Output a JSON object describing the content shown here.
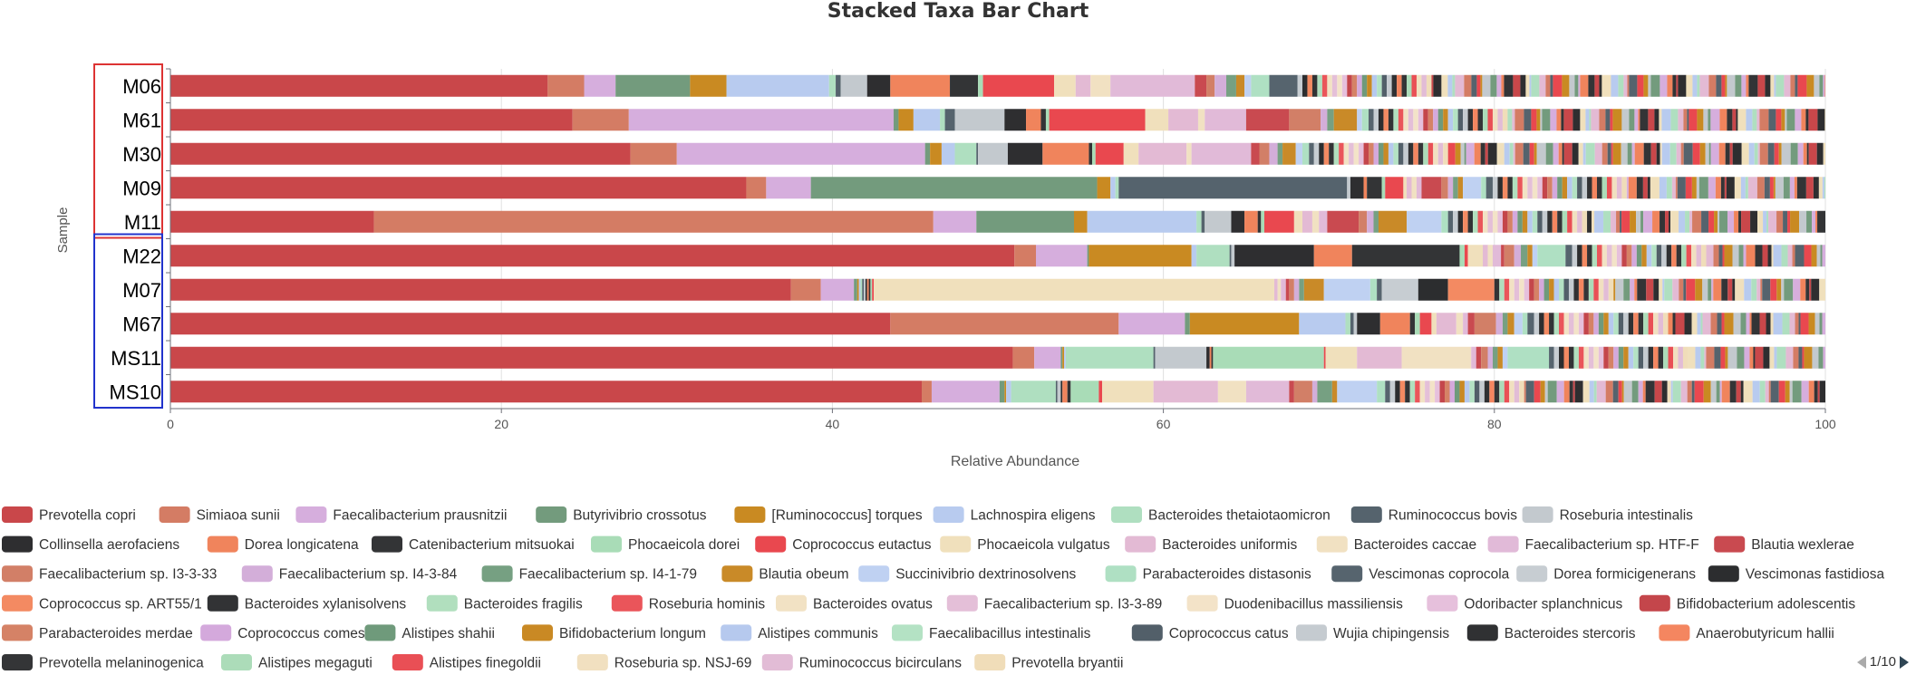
{
  "chart_data": {
    "type": "bar",
    "orientation": "horizontal",
    "stacked": true,
    "title": "Stacked Taxa Bar Chart",
    "xlabel": "Relative Abundance",
    "ylabel": "Sample",
    "xlim": [
      0,
      100
    ],
    "xticks": [
      "0",
      "20",
      "40",
      "60",
      "80",
      "100"
    ],
    "grid": true,
    "legend_position": "bottom",
    "categories": [
      "M06",
      "M61",
      "M30",
      "M09",
      "M11",
      "M22",
      "M07",
      "M67",
      "MS11",
      "MS10"
    ],
    "group_boxes": [
      {
        "color": "#dd3333",
        "members": [
          "M06",
          "M61",
          "M30",
          "M09",
          "M11"
        ]
      },
      {
        "color": "#2233cc",
        "members": [
          "M22",
          "M07",
          "M67",
          "MS11",
          "MS10"
        ]
      }
    ],
    "series": [
      {
        "name": "Prevotella copri",
        "color": "#c9474a",
        "values": [
          22.8,
          24.3,
          27.8,
          34.8,
          12.3,
          51.0,
          37.5,
          43.5,
          50.9,
          45.4
        ]
      },
      {
        "name": "Simiaoa sunii",
        "color": "#d47c64",
        "values": [
          2.2,
          3.4,
          2.8,
          1.2,
          33.8,
          1.3,
          1.8,
          13.8,
          1.3,
          0.6
        ]
      },
      {
        "name": "Faecalibacterium prausnitzii",
        "color": "#d6aedd",
        "values": [
          1.9,
          16.0,
          15.0,
          2.7,
          2.6,
          3.1,
          2.0,
          4.0,
          1.6,
          4.1
        ]
      },
      {
        "name": "Butyrivibrio crossotus",
        "color": "#739b7d",
        "values": [
          4.5,
          0.3,
          0.3,
          17.3,
          5.9,
          0.1,
          0.2,
          0.3,
          0.1,
          0.3
        ]
      },
      {
        "name": "[Ruminococcus] torques",
        "color": "#c98a22",
        "values": [
          2.2,
          0.9,
          0.7,
          0.8,
          0.8,
          6.2,
          0.1,
          6.6,
          0.1,
          0.1
        ]
      },
      {
        "name": "Lachnospira eligens",
        "color": "#b8cbef",
        "values": [
          6.2,
          1.6,
          0.8,
          0.3,
          6.6,
          0.3,
          0.1,
          2.8,
          0.1,
          0.3
        ]
      },
      {
        "name": "Bacteroides thetaiotaomicron",
        "color": "#afdfc0",
        "values": [
          0.4,
          0.3,
          1.3,
          0.2,
          0.3,
          2.0,
          0.1,
          0.3,
          5.3,
          2.7
        ]
      },
      {
        "name": "Ruminococcus bovis",
        "color": "#55636d",
        "values": [
          0.3,
          0.6,
          0.1,
          13.8,
          0.2,
          0.1,
          0.1,
          0.2,
          0.1,
          0.1
        ]
      },
      {
        "name": "Roseburia intestinalis",
        "color": "#c3c9ce",
        "values": [
          1.6,
          3.0,
          1.8,
          0.2,
          1.6,
          0.2,
          0.1,
          0.2,
          3.1,
          0.2
        ]
      },
      {
        "name": "Collinsella aerofaciens",
        "color": "#2e2e30",
        "values": [
          1.4,
          1.3,
          2.1,
          0.8,
          0.8,
          4.8,
          0.1,
          1.4,
          0.2,
          0.1
        ]
      },
      {
        "name": "Dorea longicatena",
        "color": "#f0845c",
        "values": [
          3.6,
          0.9,
          2.8,
          0.2,
          0.8,
          2.3,
          0.1,
          1.8,
          0.1,
          0.3
        ]
      },
      {
        "name": "Catenibacterium mitsuokai",
        "color": "#333436",
        "values": [
          1.7,
          0.3,
          0.2,
          0.9,
          0.2,
          6.5,
          0.1,
          0.3,
          0.1,
          0.2
        ]
      },
      {
        "name": "Phocaeicola dorei",
        "color": "#a9dcb7",
        "values": [
          0.3,
          0.2,
          0.2,
          0.2,
          0.2,
          0.3,
          0.1,
          0.3,
          6.7,
          1.7
        ]
      },
      {
        "name": "Coprococcus eutactus",
        "color": "#e9484f",
        "values": [
          4.3,
          5.8,
          1.7,
          1.1,
          1.8,
          0.2,
          0.1,
          0.7,
          0.1,
          0.2
        ]
      },
      {
        "name": "Phocaeicola vulgatus",
        "color": "#f0e0bc",
        "values": [
          1.3,
          1.4,
          0.9,
          0.2,
          0.5,
          0.9,
          24.2,
          0.3,
          1.9,
          3.1
        ]
      },
      {
        "name": "Bacteroides uniformis",
        "color": "#e3bad4",
        "values": [
          0.9,
          1.8,
          2.9,
          0.3,
          0.6,
          0.3,
          0.2,
          1.2,
          2.7,
          3.9
        ]
      },
      {
        "name": "Bacteroides caccae",
        "color": "#f1e1c2",
        "values": [
          1.2,
          0.4,
          0.3,
          0.3,
          0.4,
          0.3,
          0.2,
          0.4,
          4.2,
          1.7
        ]
      },
      {
        "name": "Faecalibacterium sp. HTF-F",
        "color": "#e1bad8",
        "values": [
          5.1,
          2.5,
          3.6,
          0.3,
          0.5,
          0.5,
          0.3,
          0.3,
          0.3,
          2.6
        ]
      },
      {
        "name": "Blautia wexlerae",
        "color": "#c94a50",
        "values": [
          0.7,
          2.6,
          0.5,
          1.2,
          1.9,
          0.2,
          0.2,
          0.4,
          0.3,
          0.3
        ]
      },
      {
        "name": "Faecalibacterium sp. I3-3-33",
        "color": "#d27f67",
        "values": [
          0.5,
          1.9,
          0.6,
          0.4,
          0.5,
          0.6,
          0.3,
          1.3,
          0.4,
          1.1
        ]
      },
      {
        "name": "Faecalibacterium sp. I4-3-84",
        "color": "#d3aed9",
        "values": [
          0.7,
          0.4,
          0.5,
          0.3,
          0.4,
          0.4,
          0.3,
          0.4,
          0.3,
          0.3
        ]
      },
      {
        "name": "Faecalibacterium sp. I4-1-79",
        "color": "#76a082",
        "values": [
          0.6,
          0.4,
          0.3,
          0.3,
          0.3,
          0.4,
          0.3,
          0.3,
          0.3,
          0.9
        ]
      },
      {
        "name": "Blautia obeum",
        "color": "#c98a28",
        "values": [
          0.5,
          1.4,
          0.8,
          0.3,
          1.7,
          0.3,
          1.2,
          0.4,
          0.3,
          0.3
        ]
      },
      {
        "name": "Succinivibrio dextrinosolvens",
        "color": "#bfd1f2",
        "values": [
          0.4,
          0.3,
          0.4,
          1.1,
          2.1,
          0.3,
          2.8,
          0.5,
          0.3,
          2.4
        ]
      },
      {
        "name": "Parabacteroides distasonis",
        "color": "#afe0c3",
        "values": [
          1.1,
          0.4,
          0.4,
          0.3,
          0.4,
          1.7,
          0.4,
          0.3,
          2.5,
          0.5
        ]
      },
      {
        "name": "Vescimonas coprocola",
        "color": "#56646e",
        "values": [
          1.7,
          0.3,
          0.3,
          0.4,
          0.3,
          0.4,
          0.3,
          0.4,
          0.3,
          0.3
        ]
      },
      {
        "name": "Dorea formicigenerans",
        "color": "#c7cdd2",
        "values": [
          0.3,
          0.3,
          0.3,
          0.3,
          0.3,
          0.3,
          2.2,
          0.3,
          0.3,
          0.3
        ]
      },
      {
        "name": "Vescimonas fastidiosa",
        "color": "#2c2d2f",
        "values": [
          0.3,
          0.3,
          0.3,
          0.3,
          0.3,
          0.3,
          1.8,
          0.3,
          0.3,
          0.3
        ]
      },
      {
        "name": "Coprococcus sp. ART55/1",
        "color": "#f38a62",
        "values": [
          0.3,
          0.3,
          0.3,
          0.3,
          0.3,
          0.3,
          2.8,
          0.3,
          0.3,
          0.3
        ]
      },
      {
        "name": "Bacteroides xylanisolvens",
        "color": "#323335",
        "values": [
          0.3,
          0.3,
          0.3,
          0.3,
          0.3,
          0.3,
          0.3,
          0.3,
          0.3,
          0.3
        ]
      },
      {
        "name": "Bacteroides fragilis",
        "color": "#b1dfbe",
        "values": [
          0.3,
          0.3,
          0.3,
          0.3,
          0.3,
          0.3,
          0.3,
          0.3,
          0.3,
          0.3
        ]
      },
      {
        "name": "Roseburia hominis",
        "color": "#ea555a",
        "values": [
          0.3,
          0.3,
          0.3,
          0.3,
          0.3,
          0.3,
          0.3,
          0.3,
          0.3,
          0.3
        ]
      },
      {
        "name": "Bacteroides ovatus",
        "color": "#f2e2c4",
        "values": [
          0.3,
          0.3,
          0.3,
          0.3,
          0.3,
          0.3,
          0.3,
          0.3,
          0.3,
          0.3
        ]
      },
      {
        "name": "Faecalibacterium sp. I3-3-89",
        "color": "#e4bfd8",
        "values": [
          0.3,
          0.3,
          0.3,
          0.3,
          0.3,
          0.3,
          0.3,
          0.3,
          0.3,
          0.3
        ]
      },
      {
        "name": "Duodenibacillus massiliensis",
        "color": "#f3e3c8",
        "values": [
          0.3,
          0.3,
          0.3,
          0.3,
          0.3,
          0.3,
          0.3,
          0.3,
          0.3,
          0.3
        ]
      },
      {
        "name": "Odoribacter splanchnicus",
        "color": "#e6c0dc",
        "values": [
          0.3,
          0.3,
          0.3,
          0.3,
          0.3,
          0.3,
          0.3,
          0.3,
          0.3,
          0.3
        ]
      },
      {
        "name": "Bifidobacterium adolescentis",
        "color": "#c4464b",
        "values": [
          0.3,
          0.3,
          0.3,
          0.3,
          0.3,
          0.3,
          0.3,
          0.3,
          0.3,
          0.3
        ]
      },
      {
        "name": "Parabacteroides merdae",
        "color": "#d58266",
        "values": [
          0.3,
          0.3,
          0.3,
          0.3,
          0.3,
          0.3,
          0.3,
          0.3,
          0.3,
          0.3
        ]
      },
      {
        "name": "Coprococcus comes",
        "color": "#d4a9dc",
        "values": [
          0.3,
          0.3,
          0.3,
          0.3,
          0.3,
          0.3,
          0.3,
          0.3,
          0.3,
          0.3
        ]
      },
      {
        "name": "Alistipes shahii",
        "color": "#6f9a7b",
        "values": [
          0.3,
          0.3,
          0.3,
          0.3,
          0.3,
          0.3,
          0.3,
          0.3,
          0.3,
          0.3
        ]
      },
      {
        "name": "Bifidobacterium longum",
        "color": "#c98924",
        "values": [
          0.3,
          0.3,
          0.3,
          0.3,
          0.3,
          0.3,
          0.3,
          0.3,
          0.3,
          0.3
        ]
      },
      {
        "name": "Alistipes communis",
        "color": "#b6c9ee",
        "values": [
          0.3,
          0.3,
          0.3,
          0.3,
          0.3,
          0.3,
          0.3,
          0.3,
          0.3,
          0.3
        ]
      },
      {
        "name": "Faecalibacillus intestinalis",
        "color": "#b4e2c4",
        "values": [
          0.3,
          0.3,
          0.3,
          0.3,
          0.3,
          0.3,
          0.3,
          0.3,
          0.3,
          0.3
        ]
      },
      {
        "name": "Coprococcus catus",
        "color": "#525f69",
        "values": [
          0.3,
          0.3,
          0.3,
          0.3,
          0.3,
          0.3,
          0.3,
          0.3,
          0.3,
          0.3
        ]
      },
      {
        "name": "Wujia chipingensis",
        "color": "#c5cbd0",
        "values": [
          0.3,
          0.3,
          0.3,
          0.3,
          0.3,
          0.3,
          0.3,
          0.3,
          0.3,
          0.3
        ]
      },
      {
        "name": "Bacteroides stercoris",
        "color": "#303133",
        "values": [
          0.3,
          0.3,
          0.3,
          0.3,
          0.3,
          0.3,
          0.3,
          0.3,
          0.3,
          0.3
        ]
      },
      {
        "name": "Anaerobutyricum hallii",
        "color": "#f48660",
        "values": [
          0.3,
          0.3,
          0.3,
          0.3,
          0.3,
          0.3,
          0.3,
          0.3,
          0.3,
          0.3
        ]
      },
      {
        "name": "Prevotella melaninogenica",
        "color": "#343537",
        "values": [
          0.3,
          0.3,
          0.3,
          0.3,
          0.3,
          0.3,
          0.3,
          0.3,
          0.3,
          0.3
        ]
      },
      {
        "name": "Alistipes megaguti",
        "color": "#acdcb9",
        "values": [
          0.3,
          0.3,
          0.3,
          0.3,
          0.3,
          0.3,
          0.3,
          0.3,
          0.3,
          0.3
        ]
      },
      {
        "name": "Alistipes finegoldii",
        "color": "#e94f55",
        "values": [
          0.3,
          0.3,
          0.3,
          0.3,
          0.3,
          0.3,
          0.3,
          0.3,
          0.3,
          0.3
        ]
      },
      {
        "name": "Roseburia sp. NSJ-69",
        "color": "#f1e0c0",
        "values": [
          0.3,
          0.3,
          0.3,
          0.3,
          0.3,
          0.3,
          0.3,
          0.3,
          0.3,
          0.3
        ]
      },
      {
        "name": "Ruminococcus bicirculans",
        "color": "#e2bcd6",
        "values": [
          0.3,
          0.3,
          0.3,
          0.3,
          0.3,
          0.3,
          0.3,
          0.3,
          0.3,
          0.3
        ]
      },
      {
        "name": "Prevotella bryantii",
        "color": "#f0ddb9",
        "values": [
          0.3,
          0.3,
          0.3,
          0.3,
          0.3,
          0.3,
          0.3,
          0.3,
          0.3,
          0.3
        ]
      }
    ],
    "remainder_colors": [
      "#c9474a",
      "#2e2e30",
      "#f0e0bc",
      "#b8cbef",
      "#afdfc0",
      "#e3bad4",
      "#d47c64",
      "#55636d",
      "#e9484f",
      "#c98a22",
      "#c3c9ce",
      "#739b7d",
      "#d6aedd",
      "#f0845c",
      "#333436"
    ]
  },
  "pager": {
    "label": "1/10"
  }
}
